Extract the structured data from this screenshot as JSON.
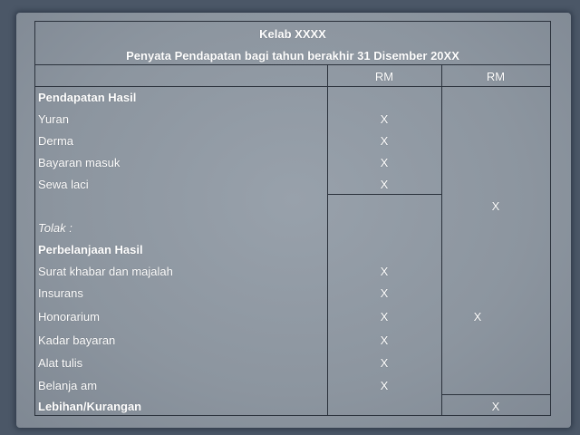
{
  "title": "Kelab XXXX",
  "subtitle": "Penyata Pendapatan bagi tahun berakhir 31 Disember 20XX",
  "columns": [
    "RM",
    "RM"
  ],
  "rows": [
    {
      "label": "Pendapatan Hasil",
      "bold": true,
      "col1": "",
      "col2": ""
    },
    {
      "label": "Yuran",
      "col1": "X",
      "col2": ""
    },
    {
      "label": "Derma",
      "col1": "X",
      "col2": ""
    },
    {
      "label": "Bayaran masuk",
      "col1": "X",
      "col2": ""
    },
    {
      "label": "Sewa laci",
      "col1": "X",
      "col2": ""
    },
    {
      "label": "",
      "col1": "",
      "col2": "X"
    },
    {
      "label": "Tolak :",
      "italic": true,
      "col1": "",
      "col2": ""
    },
    {
      "label": "Perbelanjaan Hasil",
      "bold": true,
      "col1": "",
      "col2": ""
    },
    {
      "label": "Surat khabar dan majalah",
      "col1": "X",
      "col2": ""
    },
    {
      "label": "Insurans",
      "col1": "X",
      "col2": ""
    },
    {
      "label": "Honorarium",
      "col1": "X",
      "col2": "X"
    },
    {
      "label": "Kadar bayaran",
      "col1": "X",
      "col2": ""
    },
    {
      "label": "Alat tulis",
      "col1": "X",
      "col2": ""
    },
    {
      "label": "Belanja am",
      "col1": "X",
      "col2": ""
    },
    {
      "label": "Lebihan/Kurangan",
      "bold": true,
      "col1": "",
      "col2": "X"
    }
  ]
}
